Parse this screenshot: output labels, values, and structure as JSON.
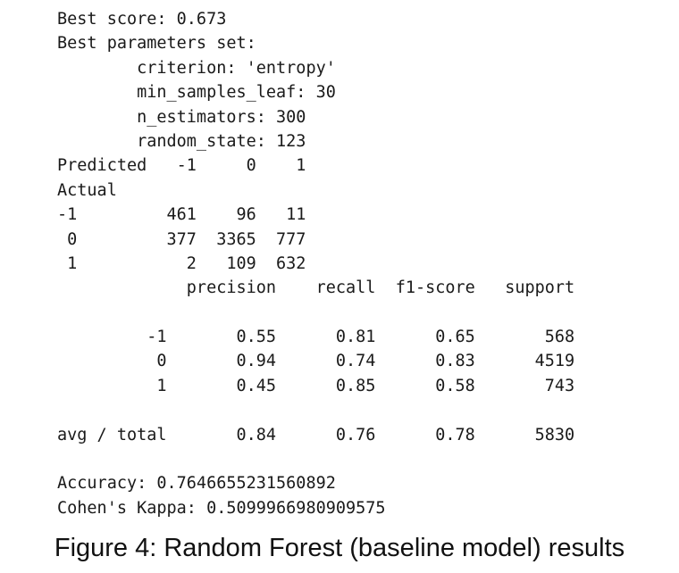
{
  "output": {
    "lines": [
      "Best score: 0.673",
      "Best parameters set:",
      "        criterion: 'entropy'",
      "        min_samples_leaf: 30",
      "        n_estimators: 300",
      "        random_state: 123",
      "Predicted   -1     0    1",
      "Actual",
      "-1         461    96   11",
      " 0         377  3365  777",
      " 1           2   109  632",
      "             precision    recall  f1-score   support",
      "",
      "         -1       0.55      0.81      0.65       568",
      "          0       0.94      0.74      0.83      4519",
      "          1       0.45      0.85      0.58       743",
      "",
      "avg / total       0.84      0.76      0.78      5830",
      "",
      "Accuracy: 0.7646655231560892",
      "Cohen's Kappa: 0.5099966980909575"
    ]
  },
  "caption": "Figure 4: Random Forest (baseline model) results"
}
